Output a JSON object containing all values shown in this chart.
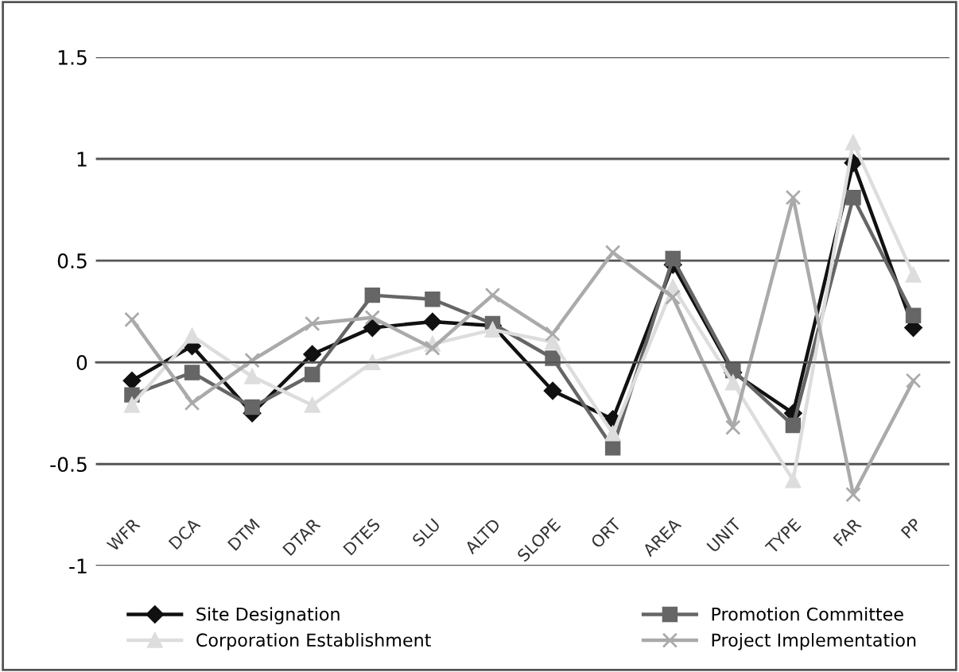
{
  "chart_data": {
    "type": "line",
    "categories": [
      "WFR",
      "DCA",
      "DTM",
      "DTAR",
      "DTES",
      "SLU",
      "ALTD",
      "SLOPE",
      "ORT",
      "AREA",
      "UNIT",
      "TYPE",
      "FAR",
      "PP"
    ],
    "series": [
      {
        "name": "Site Designation",
        "color": "#111111",
        "marker": "diamond",
        "values": [
          -0.09,
          0.08,
          -0.25,
          0.04,
          0.17,
          0.2,
          0.18,
          -0.14,
          -0.28,
          0.48,
          -0.05,
          -0.25,
          0.98,
          0.17
        ]
      },
      {
        "name": "Promotion Committee",
        "color": "#666666",
        "marker": "square",
        "values": [
          -0.16,
          -0.05,
          -0.22,
          -0.06,
          0.33,
          0.31,
          0.19,
          0.02,
          -0.42,
          0.51,
          -0.04,
          -0.31,
          0.81,
          0.23
        ]
      },
      {
        "name": "Corporation Establishment",
        "color": "#dddddd",
        "marker": "triangle",
        "values": [
          -0.21,
          0.13,
          -0.07,
          -0.21,
          0.0,
          0.09,
          0.16,
          0.1,
          -0.35,
          0.37,
          -0.1,
          -0.58,
          1.08,
          0.43
        ]
      },
      {
        "name": "Project Implementation",
        "color": "#aaaaaa",
        "marker": "cross",
        "values": [
          0.21,
          -0.2,
          0.01,
          0.19,
          0.22,
          0.07,
          0.33,
          0.14,
          0.54,
          0.32,
          -0.32,
          0.81,
          -0.65,
          -0.09
        ]
      }
    ],
    "ylim": [
      -1,
      1.5
    ],
    "yticks": [
      -1,
      -0.5,
      0,
      0.5,
      1,
      1.5
    ],
    "grid": "y",
    "legend": "bottom"
  }
}
